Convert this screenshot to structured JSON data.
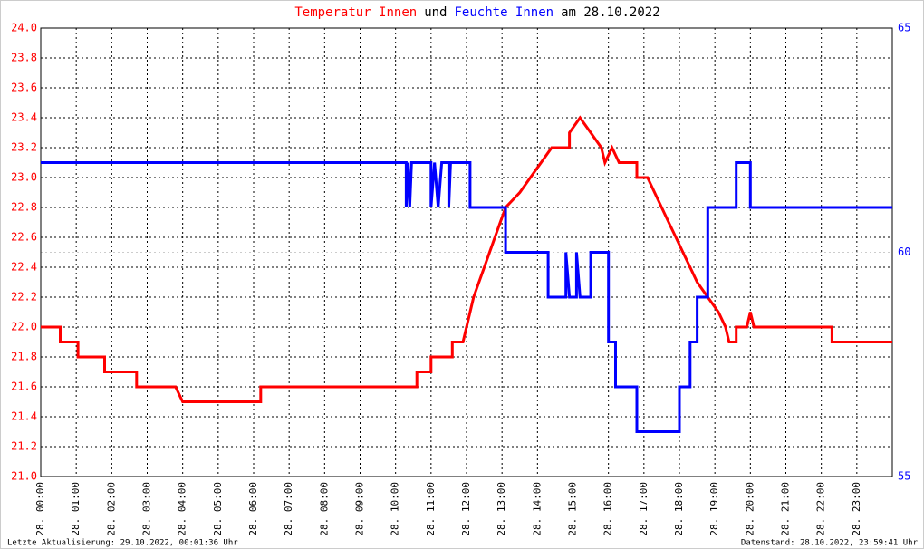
{
  "chart_data": {
    "type": "line",
    "title_parts": [
      {
        "text": "Temperatur Innen",
        "color": "#ff0000"
      },
      {
        "text": "und",
        "color": "#000000"
      },
      {
        "text": "Feuchte Innen",
        "color": "#0000ff"
      },
      {
        "text": "am 28.10.2022",
        "color": "#000000"
      }
    ],
    "footer_left": "Letzte Aktualisierung: 29.10.2022, 00:01:36 Uhr",
    "footer_right": "Datenstand: 28.10.2022, 23:59:41 Uhr",
    "xlim": [
      0,
      24
    ],
    "xticks": [
      {
        "value": 0,
        "label": "28. 00:00"
      },
      {
        "value": 1,
        "label": "28. 01:00"
      },
      {
        "value": 2,
        "label": "28. 02:00"
      },
      {
        "value": 3,
        "label": "28. 03:00"
      },
      {
        "value": 4,
        "label": "28. 04:00"
      },
      {
        "value": 5,
        "label": "28. 05:00"
      },
      {
        "value": 6,
        "label": "28. 06:00"
      },
      {
        "value": 7,
        "label": "28. 07:00"
      },
      {
        "value": 8,
        "label": "28. 08:00"
      },
      {
        "value": 9,
        "label": "28. 09:00"
      },
      {
        "value": 10,
        "label": "28. 10:00"
      },
      {
        "value": 11,
        "label": "28. 11:00"
      },
      {
        "value": 12,
        "label": "28. 12:00"
      },
      {
        "value": 13,
        "label": "28. 13:00"
      },
      {
        "value": 14,
        "label": "28. 14:00"
      },
      {
        "value": 15,
        "label": "28. 15:00"
      },
      {
        "value": 16,
        "label": "28. 16:00"
      },
      {
        "value": 17,
        "label": "28. 17:00"
      },
      {
        "value": 18,
        "label": "28. 18:00"
      },
      {
        "value": 19,
        "label": "28. 19:00"
      },
      {
        "value": 20,
        "label": "28. 20:00"
      },
      {
        "value": 21,
        "label": "28. 21:00"
      },
      {
        "value": 22,
        "label": "28. 22:00"
      },
      {
        "value": 23,
        "label": "28. 23:00"
      }
    ],
    "ylim": [
      21,
      24
    ],
    "yticks": [
      {
        "value": 21,
        "label": "21.0"
      },
      21.2,
      21.4,
      21.6,
      21.8,
      {
        "value": 22,
        "label": "22.0"
      },
      22.2,
      22.4,
      22.6,
      22.8,
      {
        "value": 23,
        "label": "23.0"
      },
      23.2,
      23.4,
      23.6,
      23.8,
      {
        "value": 24,
        "label": "24.0"
      }
    ],
    "y2lim": [
      55,
      65
    ],
    "y2ticks": [
      55,
      60,
      65
    ],
    "grid": true,
    "series": [
      {
        "name": "Temperatur Innen",
        "color": "#ff0000",
        "x": [
          0,
          0.55,
          0.55,
          1.05,
          1.05,
          1.8,
          1.8,
          2.7,
          2.7,
          3.8,
          4.0,
          6.2,
          6.2,
          10.6,
          10.6,
          11.0,
          11.0,
          11.6,
          11.6,
          11.9,
          12.0,
          12.2,
          12.5,
          12.8,
          13.1,
          13.5,
          13.8,
          14.1,
          14.4,
          14.9,
          14.9,
          15.2,
          15.5,
          15.8,
          15.9,
          16.1,
          16.3,
          16.8,
          16.8,
          17.1,
          17.3,
          17.5,
          17.7,
          17.9,
          18.1,
          18.3,
          18.5,
          18.8,
          19.1,
          19.3,
          19.4,
          19.6,
          19.6,
          19.9,
          20.0,
          20.1,
          22.3,
          22.3,
          24
        ],
        "values": [
          22.0,
          22.0,
          21.9,
          21.9,
          21.8,
          21.8,
          21.7,
          21.7,
          21.6,
          21.6,
          21.5,
          21.5,
          21.6,
          21.6,
          21.7,
          21.7,
          21.8,
          21.8,
          21.9,
          21.9,
          22.0,
          22.2,
          22.4,
          22.6,
          22.8,
          22.9,
          23.0,
          23.1,
          23.2,
          23.2,
          23.3,
          23.4,
          23.3,
          23.2,
          23.1,
          23.2,
          23.1,
          23.1,
          23.0,
          23.0,
          22.9,
          22.8,
          22.7,
          22.6,
          22.5,
          22.4,
          22.3,
          22.2,
          22.1,
          22.0,
          21.9,
          21.9,
          22.0,
          22.0,
          22.1,
          22.0,
          22.0,
          21.9,
          21.9
        ]
      },
      {
        "name": "Feuchte Innen",
        "color": "#0000ff",
        "axis": "y2",
        "x": [
          0,
          10.3,
          10.3,
          10.35,
          10.4,
          10.45,
          10.5,
          11.0,
          11.0,
          11.1,
          11.2,
          11.3,
          11.5,
          11.5,
          11.55,
          12.1,
          12.1,
          13.1,
          13.1,
          14.3,
          14.3,
          14.8,
          14.8,
          14.9,
          15.1,
          15.1,
          15.2,
          15.5,
          15.5,
          16.0,
          16.0,
          16.2,
          16.2,
          16.8,
          16.8,
          18.0,
          18.0,
          18.3,
          18.3,
          18.5,
          18.5,
          18.8,
          18.8,
          19.6,
          19.6,
          20.0,
          20.0,
          24
        ],
        "values": [
          62,
          62,
          61,
          62,
          61,
          62,
          62,
          62,
          61,
          62,
          61,
          62,
          62,
          61,
          62,
          62,
          61,
          61,
          60,
          60,
          59,
          59,
          60,
          59,
          59,
          60,
          59,
          59,
          60,
          60,
          58,
          58,
          57,
          57,
          56,
          56,
          57,
          57,
          58,
          58,
          59,
          59,
          61,
          61,
          62,
          62,
          61,
          61
        ]
      }
    ]
  }
}
